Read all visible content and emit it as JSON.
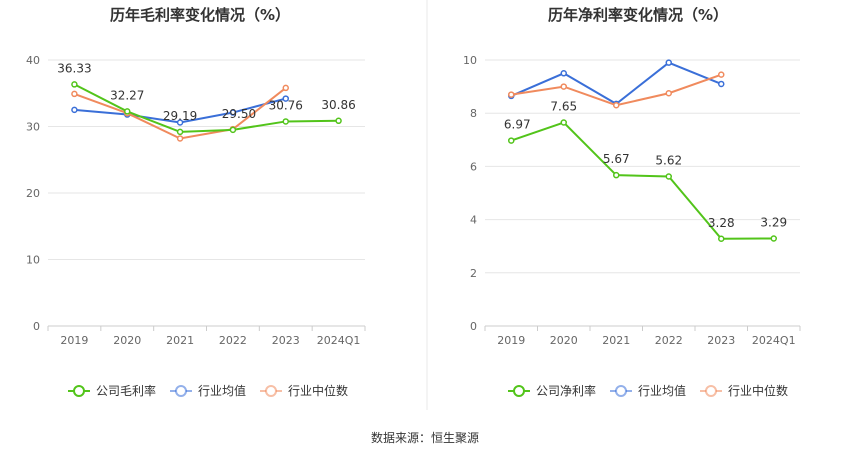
{
  "source_text": "数据来源：恒生聚源",
  "colors": {
    "company": "#52c41a",
    "avg": "#3a6fd8",
    "median": "#f08a5d"
  },
  "chart_data": [
    {
      "type": "line",
      "title": "历年毛利率变化情况（%）",
      "categories": [
        "2019",
        "2020",
        "2021",
        "2022",
        "2023",
        "2024Q1"
      ],
      "ylim": [
        0,
        40
      ],
      "yticks": [
        "0",
        "10",
        "20",
        "30",
        "40"
      ],
      "grid": true,
      "legend_placement": "bottom",
      "series": [
        {
          "name": "公司毛利率",
          "key": "company",
          "values": [
            36.33,
            32.27,
            29.19,
            29.5,
            30.76,
            30.86
          ],
          "labels": [
            "36.33",
            "32.27",
            "29.19",
            "29.50",
            "30.76",
            "30.86"
          ]
        },
        {
          "name": "行业均值",
          "key": "avg",
          "values": [
            32.5,
            31.8,
            30.6,
            32.1,
            34.2,
            null
          ]
        },
        {
          "name": "行业中位数",
          "key": "median",
          "values": [
            34.9,
            32.0,
            28.2,
            29.6,
            35.8,
            null
          ]
        }
      ]
    },
    {
      "type": "line",
      "title": "历年净利率变化情况（%）",
      "categories": [
        "2019",
        "2020",
        "2021",
        "2022",
        "2023",
        "2024Q1"
      ],
      "ylim": [
        0,
        10
      ],
      "yticks": [
        "0",
        "2",
        "4",
        "6",
        "8",
        "10"
      ],
      "grid": true,
      "legend_placement": "bottom",
      "series": [
        {
          "name": "公司净利率",
          "key": "company",
          "values": [
            6.97,
            7.65,
            5.67,
            5.62,
            3.28,
            3.29
          ],
          "labels": [
            "6.97",
            "7.65",
            "5.67",
            "5.62",
            "3.28",
            "3.29"
          ]
        },
        {
          "name": "行业均值",
          "key": "avg",
          "values": [
            8.65,
            9.5,
            8.35,
            9.9,
            9.1,
            null
          ]
        },
        {
          "name": "行业中位数",
          "key": "median",
          "values": [
            8.7,
            9.0,
            8.3,
            8.75,
            9.45,
            null
          ]
        }
      ]
    }
  ]
}
